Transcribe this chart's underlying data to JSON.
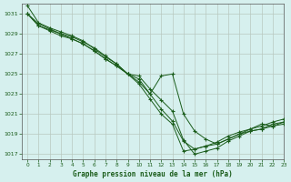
{
  "title": "Graphe pression niveau de la mer (hPa)",
  "bg_color": "#d6f0ee",
  "grid_color": "#b8c8c0",
  "line_color": "#1a5c1a",
  "xlim": [
    -0.5,
    23
  ],
  "ylim": [
    1016.5,
    1032.0
  ],
  "yticks": [
    1017,
    1019,
    1021,
    1023,
    1025,
    1027,
    1029,
    1031
  ],
  "xticks": [
    0,
    1,
    2,
    3,
    4,
    5,
    6,
    7,
    8,
    9,
    10,
    11,
    12,
    13,
    14,
    15,
    16,
    17,
    18,
    19,
    20,
    21,
    22,
    23
  ],
  "series": [
    [
      1031.8,
      1030.1,
      1029.6,
      1029.2,
      1028.8,
      1028.3,
      1027.5,
      1026.7,
      1026.0,
      1025.0,
      1024.8,
      1023.5,
      1022.4,
      1021.3,
      1018.4,
      1017.0,
      1017.3,
      1017.6,
      1018.3,
      1018.8,
      1019.3,
      1019.5,
      1019.8,
      1020.0
    ],
    [
      1031.0,
      1029.8,
      1029.3,
      1028.8,
      1028.5,
      1028.0,
      1027.3,
      1026.5,
      1025.8,
      1025.0,
      1024.5,
      1023.0,
      1024.8,
      1025.0,
      1021.0,
      1019.3,
      1018.5,
      1018.0,
      1018.5,
      1019.0,
      1019.5,
      1020.0,
      1019.8,
      1020.2
    ],
    [
      1031.0,
      1029.8,
      1029.4,
      1029.0,
      1028.7,
      1028.2,
      1027.6,
      1026.8,
      1026.0,
      1025.0,
      1024.2,
      1023.0,
      1021.5,
      1020.3,
      1018.3,
      1017.5,
      1017.8,
      1018.0,
      1018.5,
      1019.0,
      1019.3,
      1019.5,
      1020.0,
      1020.2
    ],
    [
      1031.0,
      1030.0,
      1029.5,
      1029.0,
      1028.5,
      1028.0,
      1027.3,
      1026.5,
      1025.8,
      1025.0,
      1024.0,
      1022.5,
      1021.0,
      1020.0,
      1017.3,
      1017.5,
      1017.8,
      1018.2,
      1018.8,
      1019.2,
      1019.5,
      1019.8,
      1020.2,
      1020.5
    ]
  ]
}
